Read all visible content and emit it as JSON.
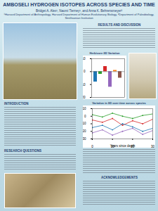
{
  "poster": {
    "title": "AMBOSELI HYDROGEN ISOTOPES ACROSS SPECIES AND TIME",
    "authors": "Bridget A. Alex¹, Naomi Tierney¹, and Anna K. Behrensmeyer²",
    "affiliations": "¹Harvard Department of Anthropology, Harvard Department of Human Evolutionary Biology, ²Department of Paleobiology, Smithsonian Institution",
    "sections": [
      "RESULTS AND DISCUSSION",
      "INTRODUCTION",
      "RESEARCH QUESTIONS",
      "ACKNOWLEDGEMENTS"
    ]
  },
  "chart_data": [
    {
      "type": "bar",
      "title": "Herbivore δD Variation",
      "categories": [
        null,
        null,
        null,
        null,
        null,
        null
      ],
      "values": [
        -8,
        -2,
        4,
        -12,
        1,
        -5
      ],
      "colors": [
        "#1f77b4",
        "#2ca02c",
        "#d62728",
        "#9467bd",
        "#ff7f0e",
        "#8c564b"
      ],
      "ylim": [
        -20,
        10
      ],
      "yticks": [
        -20,
        -10,
        0,
        10
      ],
      "tick_labels": "y"
    },
    {
      "type": "line",
      "title": "Variation in δD over time across species",
      "x": [
        0,
        5,
        10,
        15,
        20,
        25,
        30
      ],
      "series": [
        {
          "color": "#d62728",
          "values": [
            -5,
            -8,
            -3,
            -12,
            -6,
            -10,
            -4
          ]
        },
        {
          "color": "#1f77b4",
          "values": [
            -15,
            -12,
            -18,
            -10,
            -14,
            -20,
            -16
          ]
        },
        {
          "color": "#2ca02c",
          "values": [
            2,
            -1,
            4,
            0,
            -3,
            1,
            3
          ]
        },
        {
          "color": "#9467bd",
          "values": [
            -22,
            -18,
            -25,
            -20,
            -16,
            -24,
            -19
          ]
        }
      ],
      "xlim": [
        0,
        30
      ],
      "xticks": [
        0,
        10,
        20,
        30
      ],
      "ylim": [
        -30,
        10
      ],
      "yticks": [
        -30,
        -20,
        -10,
        0,
        10
      ],
      "xlabel": "Years since death"
    }
  ]
}
